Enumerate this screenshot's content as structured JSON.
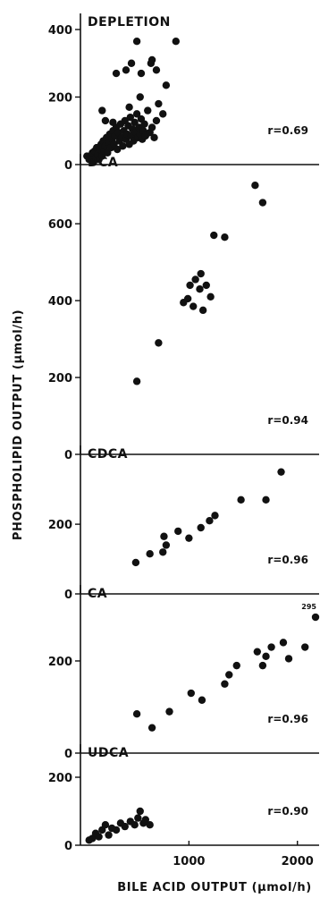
{
  "colors": {
    "ink": "#111111",
    "background": "#ffffff"
  },
  "chart_data": [
    {
      "type": "scatter",
      "title": "DEPLETION",
      "annotation": "r=0.69",
      "xlim": [
        0,
        2200
      ],
      "ylim": [
        0,
        400
      ],
      "yticks": [
        0,
        200,
        400
      ],
      "ytick_labels": [
        "0",
        "200",
        "400"
      ],
      "points": [
        [
          60,
          25
        ],
        [
          80,
          15
        ],
        [
          100,
          20
        ],
        [
          110,
          35
        ],
        [
          120,
          10
        ],
        [
          130,
          40
        ],
        [
          140,
          20
        ],
        [
          150,
          50
        ],
        [
          160,
          30
        ],
        [
          170,
          15
        ],
        [
          180,
          45
        ],
        [
          190,
          60
        ],
        [
          200,
          25
        ],
        [
          210,
          70
        ],
        [
          220,
          40
        ],
        [
          230,
          55
        ],
        [
          240,
          80
        ],
        [
          250,
          35
        ],
        [
          260,
          65
        ],
        [
          270,
          90
        ],
        [
          280,
          50
        ],
        [
          290,
          75
        ],
        [
          300,
          100
        ],
        [
          310,
          60
        ],
        [
          320,
          85
        ],
        [
          330,
          110
        ],
        [
          340,
          45
        ],
        [
          350,
          95
        ],
        [
          360,
          70
        ],
        [
          370,
          120
        ],
        [
          380,
          80
        ],
        [
          390,
          55
        ],
        [
          400,
          100
        ],
        [
          410,
          130
        ],
        [
          420,
          75
        ],
        [
          430,
          90
        ],
        [
          440,
          115
        ],
        [
          450,
          60
        ],
        [
          460,
          140
        ],
        [
          470,
          85
        ],
        [
          480,
          105
        ],
        [
          490,
          70
        ],
        [
          500,
          125
        ],
        [
          510,
          95
        ],
        [
          520,
          150
        ],
        [
          530,
          80
        ],
        [
          540,
          110
        ],
        [
          550,
          90
        ],
        [
          560,
          135
        ],
        [
          570,
          75
        ],
        [
          580,
          100
        ],
        [
          590,
          120
        ],
        [
          600,
          85
        ],
        [
          620,
          160
        ],
        [
          640,
          95
        ],
        [
          660,
          110
        ],
        [
          680,
          80
        ],
        [
          700,
          130
        ],
        [
          720,
          180
        ],
        [
          760,
          150
        ],
        [
          790,
          235
        ],
        [
          330,
          270
        ],
        [
          420,
          280
        ],
        [
          470,
          300
        ],
        [
          520,
          365
        ],
        [
          560,
          270
        ],
        [
          650,
          300
        ],
        [
          660,
          310
        ],
        [
          700,
          280
        ],
        [
          880,
          365
        ],
        [
          200,
          160
        ],
        [
          230,
          130
        ],
        [
          300,
          125
        ],
        [
          450,
          170
        ],
        [
          550,
          200
        ]
      ]
    },
    {
      "type": "scatter",
      "title": "DCA",
      "annotation": "r=0.94",
      "xlim": [
        0,
        2200
      ],
      "ylim": [
        0,
        740
      ],
      "yticks": [
        0,
        200,
        400,
        600
      ],
      "ytick_labels": [
        "0",
        "200",
        "400",
        "600"
      ],
      "points": [
        [
          520,
          190
        ],
        [
          720,
          290
        ],
        [
          950,
          395
        ],
        [
          990,
          405
        ],
        [
          1010,
          440
        ],
        [
          1040,
          385
        ],
        [
          1060,
          455
        ],
        [
          1100,
          430
        ],
        [
          1110,
          470
        ],
        [
          1130,
          375
        ],
        [
          1160,
          440
        ],
        [
          1200,
          410
        ],
        [
          1230,
          570
        ],
        [
          1330,
          565
        ],
        [
          1610,
          700
        ],
        [
          1680,
          655
        ]
      ]
    },
    {
      "type": "scatter",
      "title": "CDCA",
      "annotation": "r=0.96",
      "xlim": [
        0,
        2200
      ],
      "ylim": [
        0,
        380
      ],
      "yticks": [
        0,
        200
      ],
      "ytick_labels": [
        "0",
        "200"
      ],
      "points": [
        [
          510,
          90
        ],
        [
          640,
          115
        ],
        [
          760,
          120
        ],
        [
          790,
          140
        ],
        [
          770,
          165
        ],
        [
          900,
          180
        ],
        [
          1000,
          160
        ],
        [
          1110,
          190
        ],
        [
          1190,
          210
        ],
        [
          1240,
          225
        ],
        [
          1480,
          270
        ],
        [
          1710,
          270
        ],
        [
          1850,
          350
        ]
      ]
    },
    {
      "type": "scatter",
      "title": "CA",
      "annotation": "r=0.96",
      "point_note": "295",
      "xlim": [
        0,
        2200
      ],
      "ylim": [
        0,
        330
      ],
      "yticks": [
        0,
        200
      ],
      "ytick_labels": [
        "0",
        "200"
      ],
      "points": [
        [
          520,
          85
        ],
        [
          660,
          55
        ],
        [
          820,
          90
        ],
        [
          1020,
          130
        ],
        [
          1120,
          115
        ],
        [
          1330,
          150
        ],
        [
          1370,
          170
        ],
        [
          1440,
          190
        ],
        [
          1630,
          220
        ],
        [
          1680,
          190
        ],
        [
          1710,
          210
        ],
        [
          1760,
          230
        ],
        [
          1870,
          240
        ],
        [
          1920,
          205
        ],
        [
          2070,
          230
        ],
        [
          2200,
          295
        ]
      ]
    },
    {
      "type": "scatter",
      "title": "UDCA",
      "annotation": "r=0.90",
      "xlim": [
        0,
        2200
      ],
      "ylim": [
        0,
        250
      ],
      "yticks": [
        0,
        200
      ],
      "ytick_labels": [
        "0",
        "200"
      ],
      "xticks": [
        1000,
        2000
      ],
      "xtick_labels": [
        "1000",
        "2000"
      ],
      "points": [
        [
          80,
          15
        ],
        [
          110,
          20
        ],
        [
          140,
          35
        ],
        [
          170,
          25
        ],
        [
          200,
          45
        ],
        [
          230,
          60
        ],
        [
          260,
          30
        ],
        [
          290,
          50
        ],
        [
          330,
          45
        ],
        [
          370,
          65
        ],
        [
          410,
          55
        ],
        [
          460,
          70
        ],
        [
          500,
          60
        ],
        [
          530,
          80
        ],
        [
          550,
          100
        ],
        [
          580,
          65
        ],
        [
          600,
          75
        ],
        [
          640,
          60
        ]
      ]
    }
  ],
  "axes": {
    "ylabel": "PHOSPHOLIPID OUTPUT (µmol/h)",
    "xlabel": "BILE ACID OUTPUT (µmol/h)"
  }
}
